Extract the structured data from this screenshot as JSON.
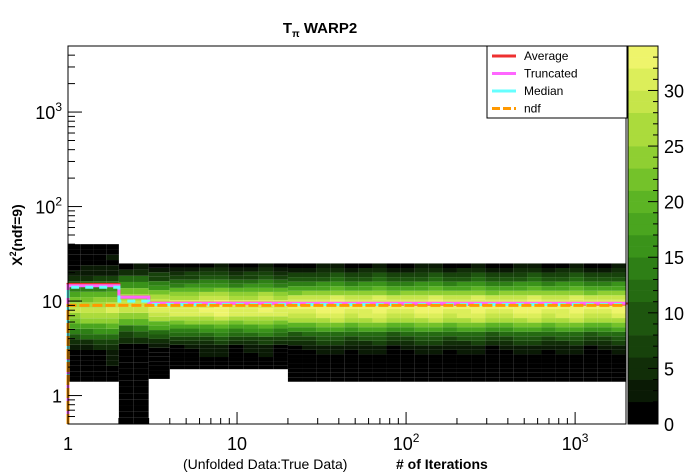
{
  "chart_data": {
    "type": "heatmap",
    "title_main": "T",
    "title_sub": "π",
    "title_rest": " WARP2",
    "ylabel_chi": "Χ",
    "ylabel_sup": "2",
    "ylabel_rest": "(ndf=9)",
    "xlabel_left": "(Unfolded Data:True Data)",
    "xlabel_right": "# of Iterations",
    "x_scale": "log",
    "y_scale": "log",
    "xlim": [
      1,
      2000
    ],
    "ylim": [
      0.5,
      5000
    ],
    "x_ticks": [
      {
        "value": 1,
        "label": "1"
      },
      {
        "value": 10,
        "label": "10"
      },
      {
        "value": 100,
        "label": "10",
        "sup": "2"
      },
      {
        "value": 1000,
        "label": "10",
        "sup": "3"
      }
    ],
    "y_ticks": [
      {
        "value": 1,
        "label": "1"
      },
      {
        "value": 10,
        "label": "10"
      },
      {
        "value": 100,
        "label": "10",
        "sup": "2"
      },
      {
        "value": 1000,
        "label": "10",
        "sup": "3"
      }
    ],
    "colorbar": {
      "min": 0,
      "max": 34,
      "ticks": [
        {
          "value": 0,
          "label": "0"
        },
        {
          "value": 5,
          "label": "5"
        },
        {
          "value": 10,
          "label": "10"
        },
        {
          "value": 15,
          "label": "15"
        },
        {
          "value": 20,
          "label": "20"
        },
        {
          "value": 25,
          "label": "25"
        },
        {
          "value": 30,
          "label": "30"
        }
      ],
      "colors": [
        "#000000",
        "#0a1a05",
        "#112e08",
        "#17420b",
        "#1e560f",
        "#256b12",
        "#2e7f16",
        "#3a931a",
        "#4aa51f",
        "#5cb424",
        "#74c22a",
        "#8fcf32",
        "#abdb3c",
        "#c6e54a",
        "#dcee5a",
        "#eef46b"
      ]
    },
    "legend_position": "top-right",
    "series": [
      {
        "name": "Average",
        "color": "#ee3030",
        "points": [
          [
            1,
            15
          ],
          [
            2,
            11
          ],
          [
            3,
            9.5
          ],
          [
            20,
            9.3
          ],
          [
            2000,
            9.2
          ]
        ]
      },
      {
        "name": "Truncated",
        "color": "#ff66ff",
        "points": [
          [
            1,
            14.5
          ],
          [
            2,
            11
          ],
          [
            3,
            9.5
          ],
          [
            2000,
            9.5
          ]
        ]
      },
      {
        "name": "Median",
        "color": "#66ffff",
        "points": [
          [
            1,
            14
          ],
          [
            2,
            10
          ],
          [
            3,
            9.2
          ],
          [
            2000,
            8.9
          ]
        ]
      },
      {
        "name": "ndf",
        "color": "#ff9900",
        "points": [
          [
            1,
            9
          ],
          [
            2000,
            9
          ]
        ]
      }
    ],
    "heatmap_columns": [
      {
        "x0": 1,
        "x1": 2,
        "y0": 1.4,
        "y1": 40,
        "peak": 8,
        "peak_value": 28
      },
      {
        "x0": 2,
        "x1": 3,
        "y0": 0.5,
        "y1": 25,
        "peak": 9,
        "peak_value": 30
      },
      {
        "x0": 3,
        "x1": 4,
        "y0": 1.5,
        "y1": 25,
        "peak": 8.5,
        "peak_value": 32
      },
      {
        "x0": 4,
        "x1": 20,
        "y0": 1.9,
        "y1": 25,
        "peak": 8.5,
        "peak_value": 32
      },
      {
        "x0": 20,
        "x1": 2000,
        "y0": 1.4,
        "y1": 25,
        "peak": 8.5,
        "peak_value": 33
      }
    ]
  }
}
